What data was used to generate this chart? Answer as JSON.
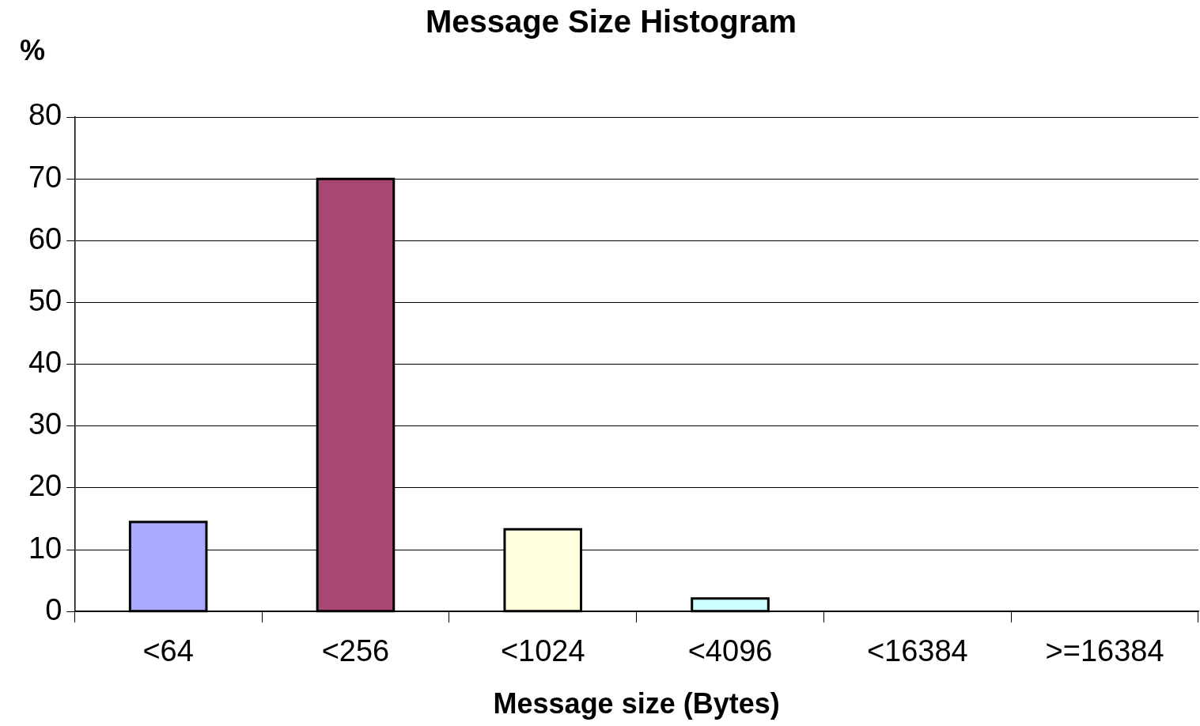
{
  "chart_data": {
    "type": "bar",
    "title": "Message Size Histogram",
    "xlabel": "Message size (Bytes)",
    "ylabel": "%",
    "categories": [
      "<64",
      "<256",
      "<1024",
      "<4096",
      "<16384",
      ">=16384"
    ],
    "values": [
      14.5,
      70,
      13.3,
      2.1,
      0,
      0
    ],
    "colors": [
      "#aaaaff",
      "#a84872",
      "#ffffdd",
      "#ccffff",
      "#aaaaff",
      "#a84872"
    ],
    "ylim": [
      0,
      80
    ],
    "yticks": [
      0,
      10,
      20,
      30,
      40,
      50,
      60,
      70,
      80
    ],
    "grid": "y",
    "legend": false
  }
}
